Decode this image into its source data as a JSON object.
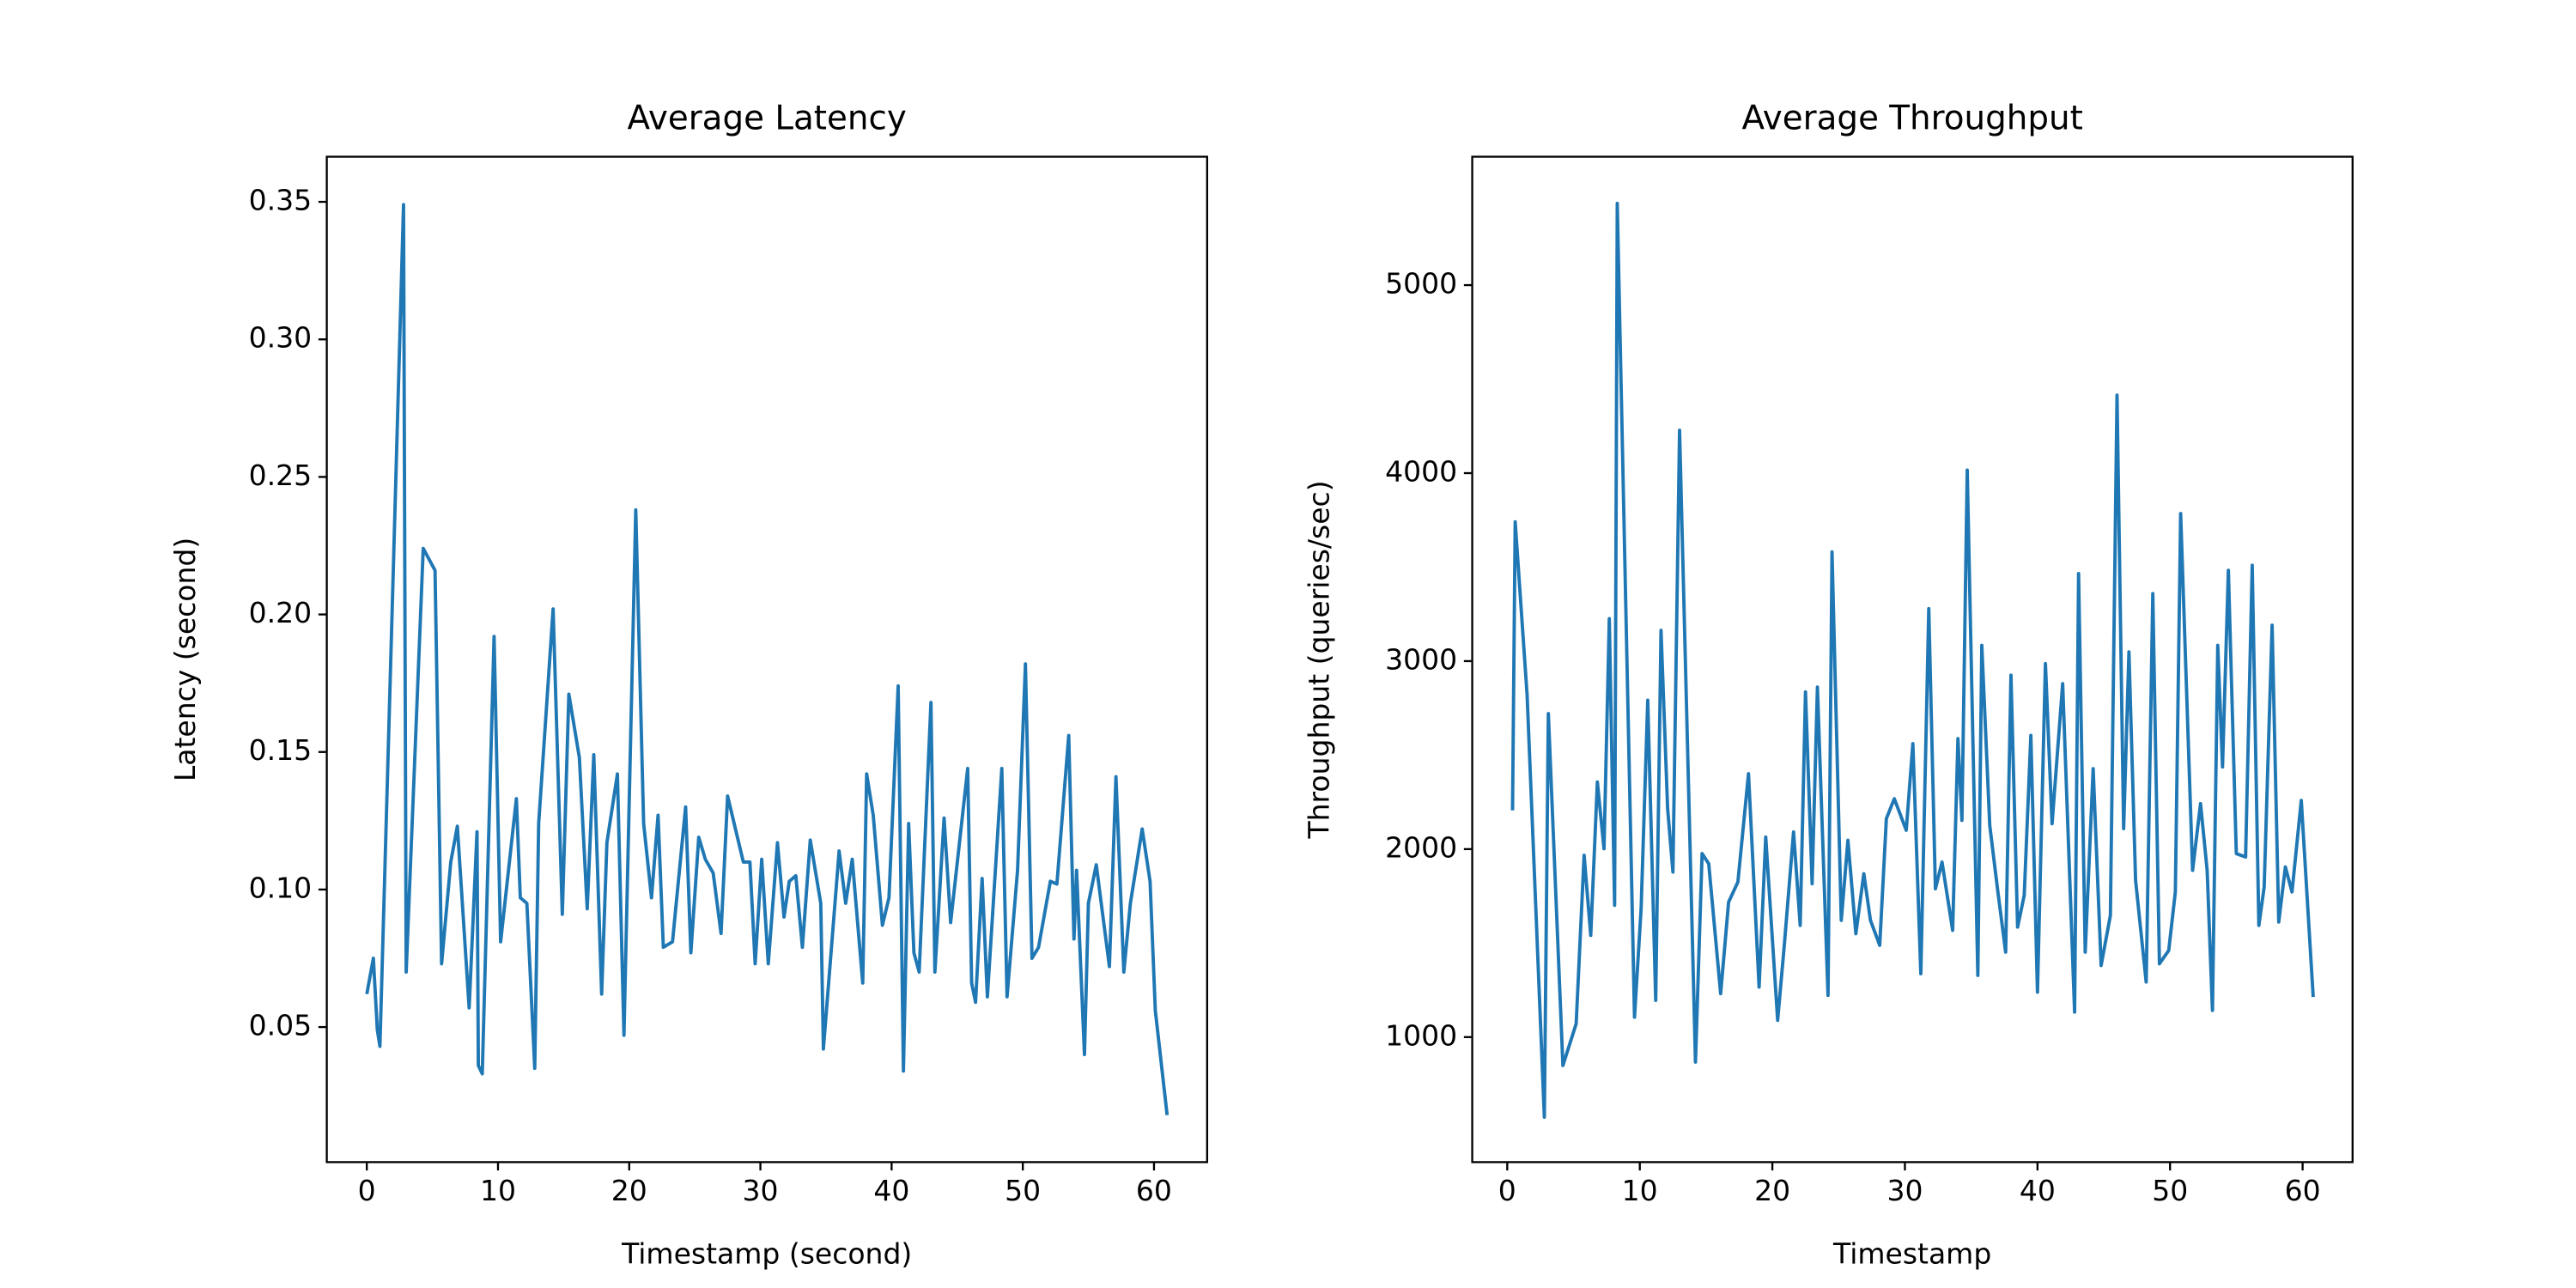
{
  "chart_data": [
    {
      "type": "line",
      "title": "Average Latency",
      "xlabel": "Timestamp (second)",
      "ylabel": "Latency (second)",
      "color": "#1f77b4",
      "xlim": [
        -3.05,
        64.05
      ],
      "ylim": [
        0.0009,
        0.3664
      ],
      "xticks": [
        0,
        10,
        20,
        30,
        40,
        50,
        60
      ],
      "yticks": [
        0.05,
        {
          "value": 0.1,
          "label": "0.10"
        },
        0.15,
        {
          "value": 0.2,
          "label": "0.20"
        },
        0.25,
        {
          "value": 0.3,
          "label": "0.30"
        },
        0.35
      ],
      "x": [
        0,
        0.5,
        0.8,
        1.0,
        2.8,
        3.0,
        4.3,
        5.2,
        5.7,
        6.4,
        6.9,
        7.8,
        8.4,
        8.5,
        8.8,
        9.7,
        10.2,
        11.4,
        11.7,
        12.2,
        12.8,
        13.1,
        14.2,
        14.9,
        15.4,
        16.2,
        16.8,
        17.3,
        17.9,
        18.3,
        19.1,
        19.6,
        20.5,
        21.1,
        21.7,
        22.2,
        22.6,
        23.3,
        24.3,
        24.7,
        25.3,
        25.8,
        26.4,
        27.0,
        27.5,
        28.7,
        29.2,
        29.6,
        30.1,
        30.6,
        31.3,
        31.8,
        32.2,
        32.7,
        33.2,
        33.8,
        34.6,
        34.8,
        36.0,
        36.5,
        37.0,
        37.8,
        38.1,
        38.6,
        39.3,
        39.8,
        40.5,
        40.9,
        41.3,
        41.7,
        42.1,
        43.0,
        43.3,
        44.0,
        44.5,
        45.8,
        46.1,
        46.4,
        46.9,
        47.3,
        48.4,
        48.8,
        49.6,
        50.2,
        50.7,
        51.2,
        52.1,
        52.6,
        53.5,
        53.9,
        54.1,
        54.7,
        55.0,
        55.6,
        56.6,
        57.1,
        57.7,
        58.2,
        59.1,
        59.7,
        60.1,
        61.0
      ],
      "values": [
        0.062,
        0.075,
        0.049,
        0.043,
        0.349,
        0.07,
        0.224,
        0.216,
        0.073,
        0.11,
        0.123,
        0.057,
        0.121,
        0.036,
        0.033,
        0.192,
        0.081,
        0.133,
        0.097,
        0.095,
        0.035,
        0.124,
        0.202,
        0.091,
        0.171,
        0.148,
        0.093,
        0.149,
        0.062,
        0.117,
        0.142,
        0.047,
        0.238,
        0.124,
        0.097,
        0.127,
        0.079,
        0.081,
        0.13,
        0.077,
        0.119,
        0.111,
        0.106,
        0.084,
        0.134,
        0.11,
        0.11,
        0.073,
        0.111,
        0.073,
        0.117,
        0.09,
        0.103,
        0.105,
        0.079,
        0.118,
        0.095,
        0.042,
        0.114,
        0.095,
        0.111,
        0.066,
        0.142,
        0.127,
        0.087,
        0.097,
        0.174,
        0.034,
        0.124,
        0.077,
        0.07,
        0.168,
        0.07,
        0.126,
        0.088,
        0.144,
        0.066,
        0.059,
        0.104,
        0.061,
        0.144,
        0.061,
        0.107,
        0.182,
        0.075,
        0.079,
        0.103,
        0.102,
        0.156,
        0.082,
        0.107,
        0.04,
        0.095,
        0.109,
        0.072,
        0.141,
        0.07,
        0.095,
        0.122,
        0.103,
        0.056,
        0.018
      ]
    },
    {
      "type": "line",
      "title": "Average Throughput",
      "xlabel": "Timestamp",
      "ylabel": "Throughput (queries/sec)",
      "color": "#1f77b4",
      "xlim": [
        -2.64,
        63.77
      ],
      "ylim": [
        335,
        5683
      ],
      "xticks": [
        0,
        10,
        20,
        30,
        40,
        50,
        60
      ],
      "yticks": [
        1000,
        2000,
        3000,
        4000,
        5000
      ],
      "x": [
        0.4,
        0.6,
        1.5,
        2.8,
        3.1,
        4.2,
        5.2,
        5.8,
        6.3,
        6.8,
        7.3,
        7.7,
        8.1,
        8.3,
        9.6,
        10.1,
        10.6,
        11.2,
        11.6,
        12.1,
        12.5,
        13.0,
        14.2,
        14.7,
        15.2,
        16.1,
        16.7,
        17.4,
        18.2,
        19.0,
        19.5,
        20.4,
        20.9,
        21.6,
        22.1,
        22.5,
        23.0,
        23.4,
        24.2,
        24.5,
        25.2,
        25.7,
        26.3,
        26.9,
        27.4,
        28.1,
        28.6,
        29.2,
        30.1,
        30.6,
        31.2,
        31.8,
        32.3,
        32.8,
        33.6,
        34.0,
        34.3,
        34.7,
        35.5,
        35.8,
        36.4,
        37.0,
        37.6,
        38.0,
        38.5,
        39.0,
        39.5,
        40.0,
        40.6,
        41.1,
        41.9,
        42.8,
        43.1,
        43.6,
        44.2,
        44.8,
        45.5,
        46.0,
        46.5,
        46.9,
        47.4,
        48.2,
        48.7,
        49.2,
        49.9,
        50.4,
        50.8,
        51.7,
        52.3,
        52.8,
        53.2,
        53.6,
        53.96,
        54.4,
        55.0,
        55.7,
        56.2,
        56.7,
        57.1,
        57.7,
        58.2,
        58.7,
        59.2,
        59.9,
        60.8
      ],
      "values": [
        2206,
        3741,
        2818,
        574,
        2721,
        849,
        1071,
        1967,
        1541,
        2357,
        2002,
        3226,
        1701,
        5435,
        1106,
        1683,
        2792,
        1195,
        3164,
        2215,
        1878,
        4228,
        867,
        1976,
        1922,
        1231,
        1718,
        1825,
        2401,
        1266,
        2064,
        1089,
        1488,
        2091,
        1594,
        2836,
        1816,
        2862,
        1222,
        3581,
        1621,
        2047,
        1550,
        1869,
        1621,
        1488,
        2162,
        2268,
        2100,
        2561,
        1337,
        3279,
        1789,
        1931,
        1568,
        2588,
        2153,
        4016,
        1328,
        3084,
        2126,
        1780,
        1452,
        2925,
        1585,
        1754,
        2605,
        1239,
        2987,
        2135,
        2880,
        1133,
        3466,
        1452,
        2428,
        1381,
        1647,
        4415,
        2109,
        3049,
        1834,
        1293,
        3359,
        1390,
        1461,
        1772,
        3785,
        1887,
        2242,
        1887,
        1142,
        3084,
        2437,
        3483,
        1976,
        1958,
        3510,
        1594,
        1798,
        3191,
        1612,
        1905,
        1772,
        2259,
        1213
      ]
    }
  ]
}
